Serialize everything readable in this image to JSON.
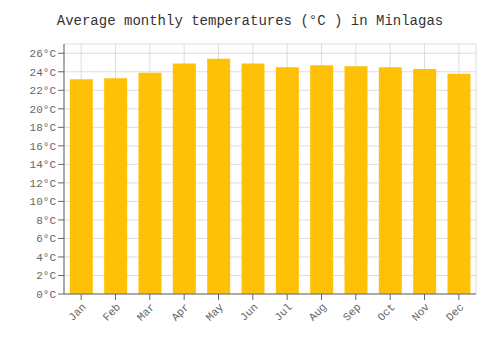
{
  "chart_data": {
    "type": "bar",
    "title": "Average monthly temperatures (°C ) in Minlagas",
    "categories": [
      "Jan",
      "Feb",
      "Mar",
      "Apr",
      "May",
      "Jun",
      "Jul",
      "Aug",
      "Sep",
      "Oct",
      "Nov",
      "Dec"
    ],
    "values": [
      23.2,
      23.3,
      23.9,
      24.9,
      25.4,
      24.9,
      24.5,
      24.7,
      24.6,
      24.5,
      24.3,
      23.8
    ],
    "color": "#FFC107",
    "ylim": [
      0,
      27
    ],
    "yticks": [
      {
        "value": 0,
        "label": "0°C"
      },
      {
        "value": 2,
        "label": "2°C"
      },
      {
        "value": 4,
        "label": "4°C"
      },
      {
        "value": 6,
        "label": "6°C"
      },
      {
        "value": 8,
        "label": "8°C"
      },
      {
        "value": 10,
        "label": "10°C"
      },
      {
        "value": 12,
        "label": "12°C"
      },
      {
        "value": 14,
        "label": "14°C"
      },
      {
        "value": 16,
        "label": "16°C"
      },
      {
        "value": 18,
        "label": "18°C"
      },
      {
        "value": 20,
        "label": "20°C"
      },
      {
        "value": 22,
        "label": "22°C"
      },
      {
        "value": 24,
        "label": "24°C"
      },
      {
        "value": 26,
        "label": "26°C"
      }
    ],
    "grid": true
  }
}
